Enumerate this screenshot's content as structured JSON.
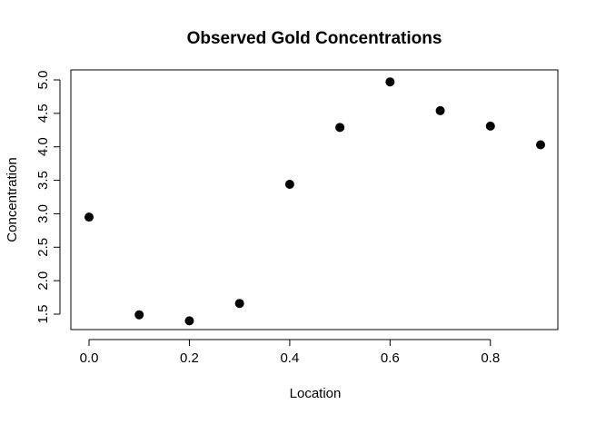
{
  "chart_data": {
    "type": "scatter",
    "title": "Observed Gold Concentrations",
    "xlabel": "Location",
    "ylabel": "Concentration",
    "xlim": [
      0.0,
      0.9
    ],
    "ylim": [
      1.4,
      5.0
    ],
    "x_ticks": [
      0.0,
      0.2,
      0.4,
      0.6,
      0.8
    ],
    "x_tick_labels": [
      "0.0",
      "0.2",
      "0.4",
      "0.6",
      "0.8"
    ],
    "y_ticks": [
      1.5,
      2.0,
      2.5,
      3.0,
      3.5,
      4.0,
      4.5,
      5.0
    ],
    "y_tick_labels": [
      "1.5",
      "2.0",
      "2.5",
      "3.0",
      "3.5",
      "4.0",
      "4.5",
      "5.0"
    ],
    "grid": false,
    "point_color": "#000000",
    "points": [
      {
        "x": 0.0,
        "y": 2.95
      },
      {
        "x": 0.1,
        "y": 1.49
      },
      {
        "x": 0.2,
        "y": 1.4
      },
      {
        "x": 0.3,
        "y": 1.66
      },
      {
        "x": 0.4,
        "y": 3.44
      },
      {
        "x": 0.5,
        "y": 4.29
      },
      {
        "x": 0.6,
        "y": 4.97
      },
      {
        "x": 0.7,
        "y": 4.54
      },
      {
        "x": 0.8,
        "y": 4.31
      },
      {
        "x": 0.9,
        "y": 4.03
      }
    ]
  }
}
